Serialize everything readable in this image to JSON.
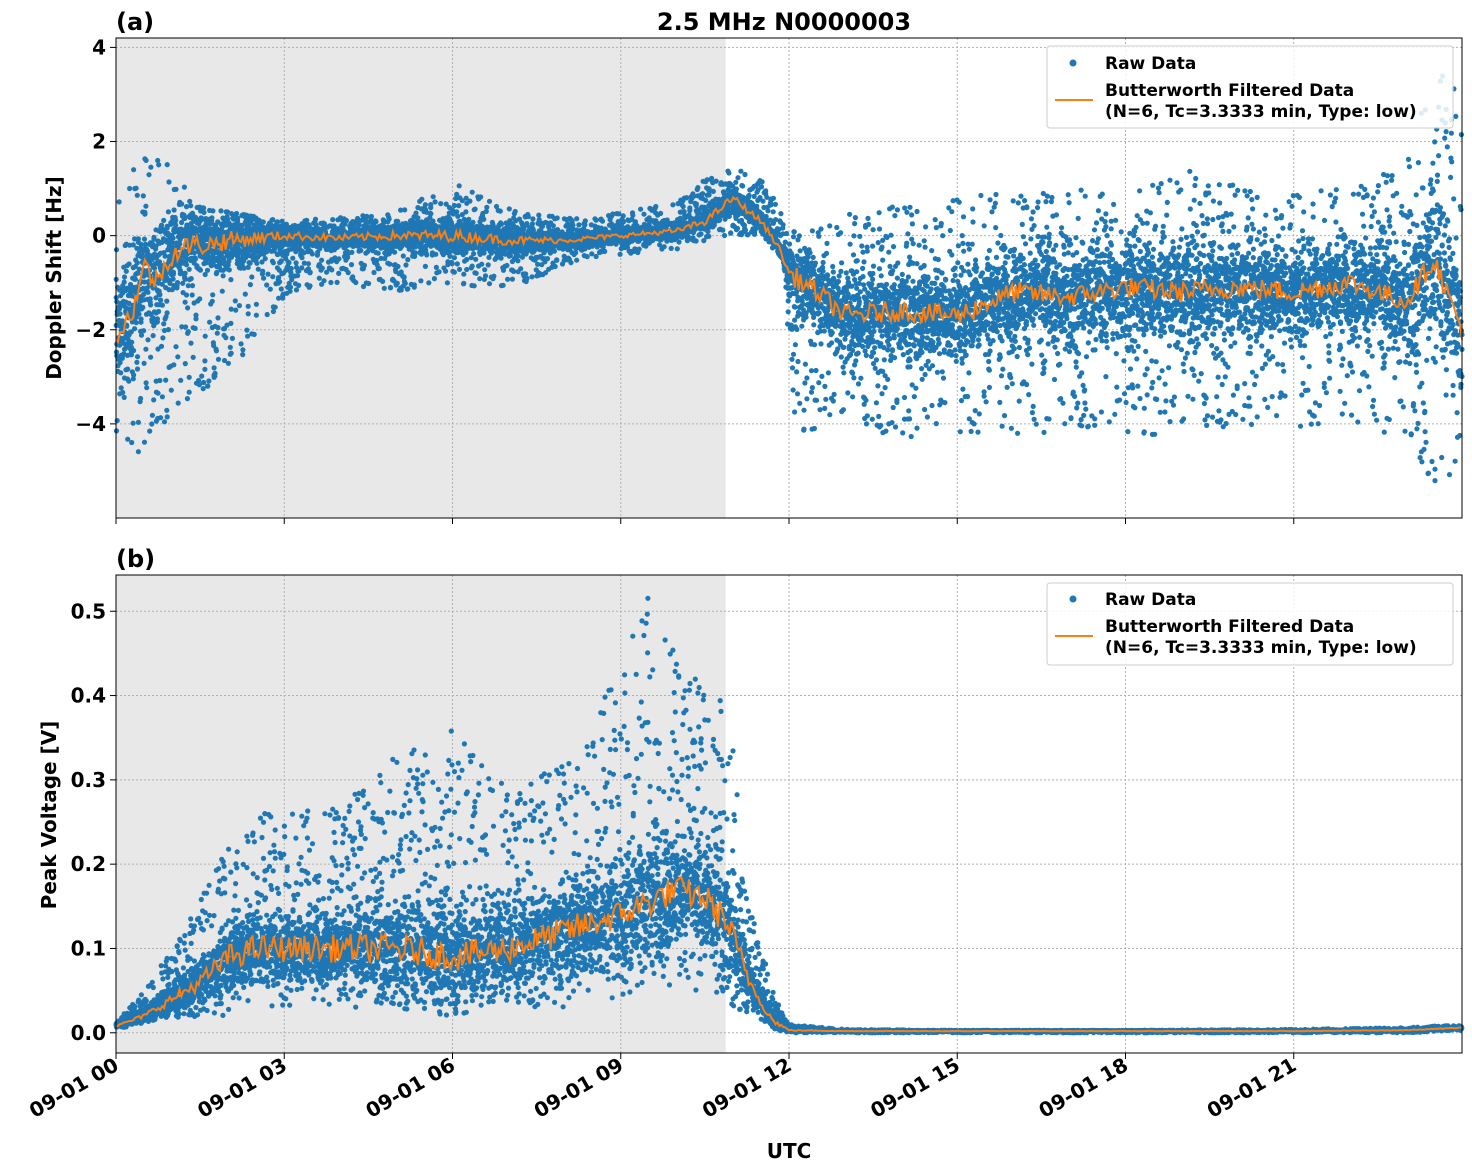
{
  "chart_data": [
    {
      "type": "scatter",
      "panel_label": "(a)",
      "title": "2.5 MHz N0000003",
      "ylabel": "Doppler Shift [Hz]",
      "xlabel": "",
      "xlim": [
        0,
        24
      ],
      "ylim": [
        -6.0,
        4.2
      ],
      "yticks": [
        4,
        2,
        0,
        -2,
        -4
      ],
      "ytick_labels": [
        "4",
        "2",
        "0",
        "−2",
        "−4"
      ],
      "shaded_span_hours": [
        0,
        10.87
      ],
      "grid": true,
      "legend_position": "top-right",
      "series": [
        {
          "name": "Raw Data",
          "marker": "dot",
          "color": "#1f77b4",
          "envelope_hours": [
            0,
            0.5,
            1,
            1.5,
            2,
            3,
            4,
            5,
            6,
            7,
            8,
            9,
            10,
            10.5,
            11,
            11.5,
            11.9,
            12.1,
            13,
            14,
            15,
            16,
            17,
            18,
            19,
            20,
            21,
            22,
            23,
            23.5,
            24
          ],
          "envelope_low": [
            -5.3,
            -4.5,
            -3.8,
            -3.3,
            -3.0,
            -1.3,
            -1.0,
            -1.2,
            -1.0,
            -1.2,
            -0.6,
            -0.4,
            -0.3,
            -0.1,
            0.0,
            0.0,
            -0.5,
            -4.2,
            -4.0,
            -4.3,
            -4.2,
            -4.3,
            -4.1,
            -4.2,
            -4.3,
            -4.0,
            -4.1,
            -4.0,
            -4.3,
            -5.4,
            -5.5
          ],
          "envelope_high": [
            0.6,
            1.9,
            1.5,
            0.6,
            0.5,
            0.3,
            0.4,
            0.5,
            1.2,
            0.6,
            0.4,
            0.5,
            0.7,
            1.2,
            1.45,
            1.2,
            0.6,
            0.1,
            0.5,
            0.8,
            0.9,
            0.9,
            1.0,
            1.0,
            1.5,
            1.2,
            1.0,
            1.0,
            1.6,
            3.5,
            3.8
          ]
        },
        {
          "name": "Butterworth Filtered Data\n(N=6, Tc=3.3333 min, Type: low)",
          "color": "#ff7f0e",
          "x_hours": [
            0,
            0.3,
            0.5,
            0.7,
            1,
            1.3,
            1.6,
            2,
            3,
            4,
            5,
            6,
            7,
            8,
            9,
            10,
            10.5,
            11,
            11.5,
            11.8,
            12,
            12.5,
            13,
            14,
            15,
            16,
            17,
            18,
            19,
            20,
            21,
            22,
            23,
            23.5,
            24
          ],
          "y": [
            -2.2,
            -1.6,
            -0.6,
            -1.0,
            -0.4,
            -0.2,
            -0.2,
            -0.1,
            0.0,
            -0.05,
            0.0,
            0.0,
            -0.1,
            -0.1,
            0.0,
            0.1,
            0.3,
            0.8,
            0.3,
            -0.2,
            -0.8,
            -1.2,
            -1.7,
            -1.6,
            -1.7,
            -1.2,
            -1.3,
            -1.1,
            -1.2,
            -1.1,
            -1.2,
            -1.0,
            -1.4,
            -0.5,
            -2.0
          ]
        }
      ]
    },
    {
      "type": "scatter",
      "panel_label": "(b)",
      "title": "",
      "ylabel": "Peak Voltage [V]",
      "xlabel": "UTC",
      "xlim": [
        0,
        24
      ],
      "ylim": [
        -0.024,
        0.543
      ],
      "yticks": [
        0.5,
        0.4,
        0.3,
        0.2,
        0.1,
        0.0
      ],
      "ytick_labels": [
        "0.5",
        "0.4",
        "0.3",
        "0.2",
        "0.1",
        "0.0"
      ],
      "shaded_span_hours": [
        0,
        10.87
      ],
      "grid": true,
      "legend_position": "top-right",
      "xtick_hours": [
        0,
        3,
        6,
        9,
        12,
        15,
        18,
        21
      ],
      "xtick_labels": [
        "09-01 00",
        "09-01 03",
        "09-01 06",
        "09-01 09",
        "09-01 12",
        "09-01 15",
        "09-01 18",
        "09-01 21"
      ],
      "series": [
        {
          "name": "Raw Data",
          "marker": "dot",
          "color": "#1f77b4",
          "envelope_hours": [
            0,
            0.5,
            1,
            1.5,
            2,
            2.5,
            3,
            4,
            5,
            6,
            7,
            8,
            9,
            9.5,
            10,
            10.5,
            10.9,
            11.3,
            11.7,
            12,
            13,
            15,
            18,
            21,
            23,
            24
          ],
          "envelope_low": [
            0.005,
            0.01,
            0.015,
            0.02,
            0.02,
            0.03,
            0.03,
            0.03,
            0.03,
            0.02,
            0.03,
            0.03,
            0.04,
            0.05,
            0.05,
            0.05,
            0.03,
            0.02,
            0.005,
            0.0,
            0.0,
            0.0,
            0.0,
            0.0,
            0.0,
            0.003
          ],
          "envelope_high": [
            0.012,
            0.05,
            0.1,
            0.16,
            0.23,
            0.27,
            0.26,
            0.27,
            0.33,
            0.37,
            0.29,
            0.33,
            0.44,
            0.52,
            0.45,
            0.41,
            0.4,
            0.15,
            0.06,
            0.01,
            0.004,
            0.003,
            0.003,
            0.004,
            0.006,
            0.01
          ]
        },
        {
          "name": "Butterworth Filtered Data\n(N=6, Tc=3.3333 min, Type: low)",
          "color": "#ff7f0e",
          "x_hours": [
            0,
            0.5,
            1,
            1.5,
            2,
            2.5,
            3,
            4,
            5,
            6,
            7,
            8,
            9,
            10,
            10.5,
            10.9,
            11.3,
            11.7,
            12,
            13,
            15,
            18,
            21,
            23,
            24
          ],
          "y": [
            0.008,
            0.02,
            0.04,
            0.06,
            0.09,
            0.1,
            0.1,
            0.1,
            0.1,
            0.09,
            0.1,
            0.12,
            0.14,
            0.17,
            0.16,
            0.13,
            0.06,
            0.015,
            0.003,
            0.002,
            0.002,
            0.002,
            0.002,
            0.003,
            0.006
          ]
        }
      ]
    }
  ]
}
